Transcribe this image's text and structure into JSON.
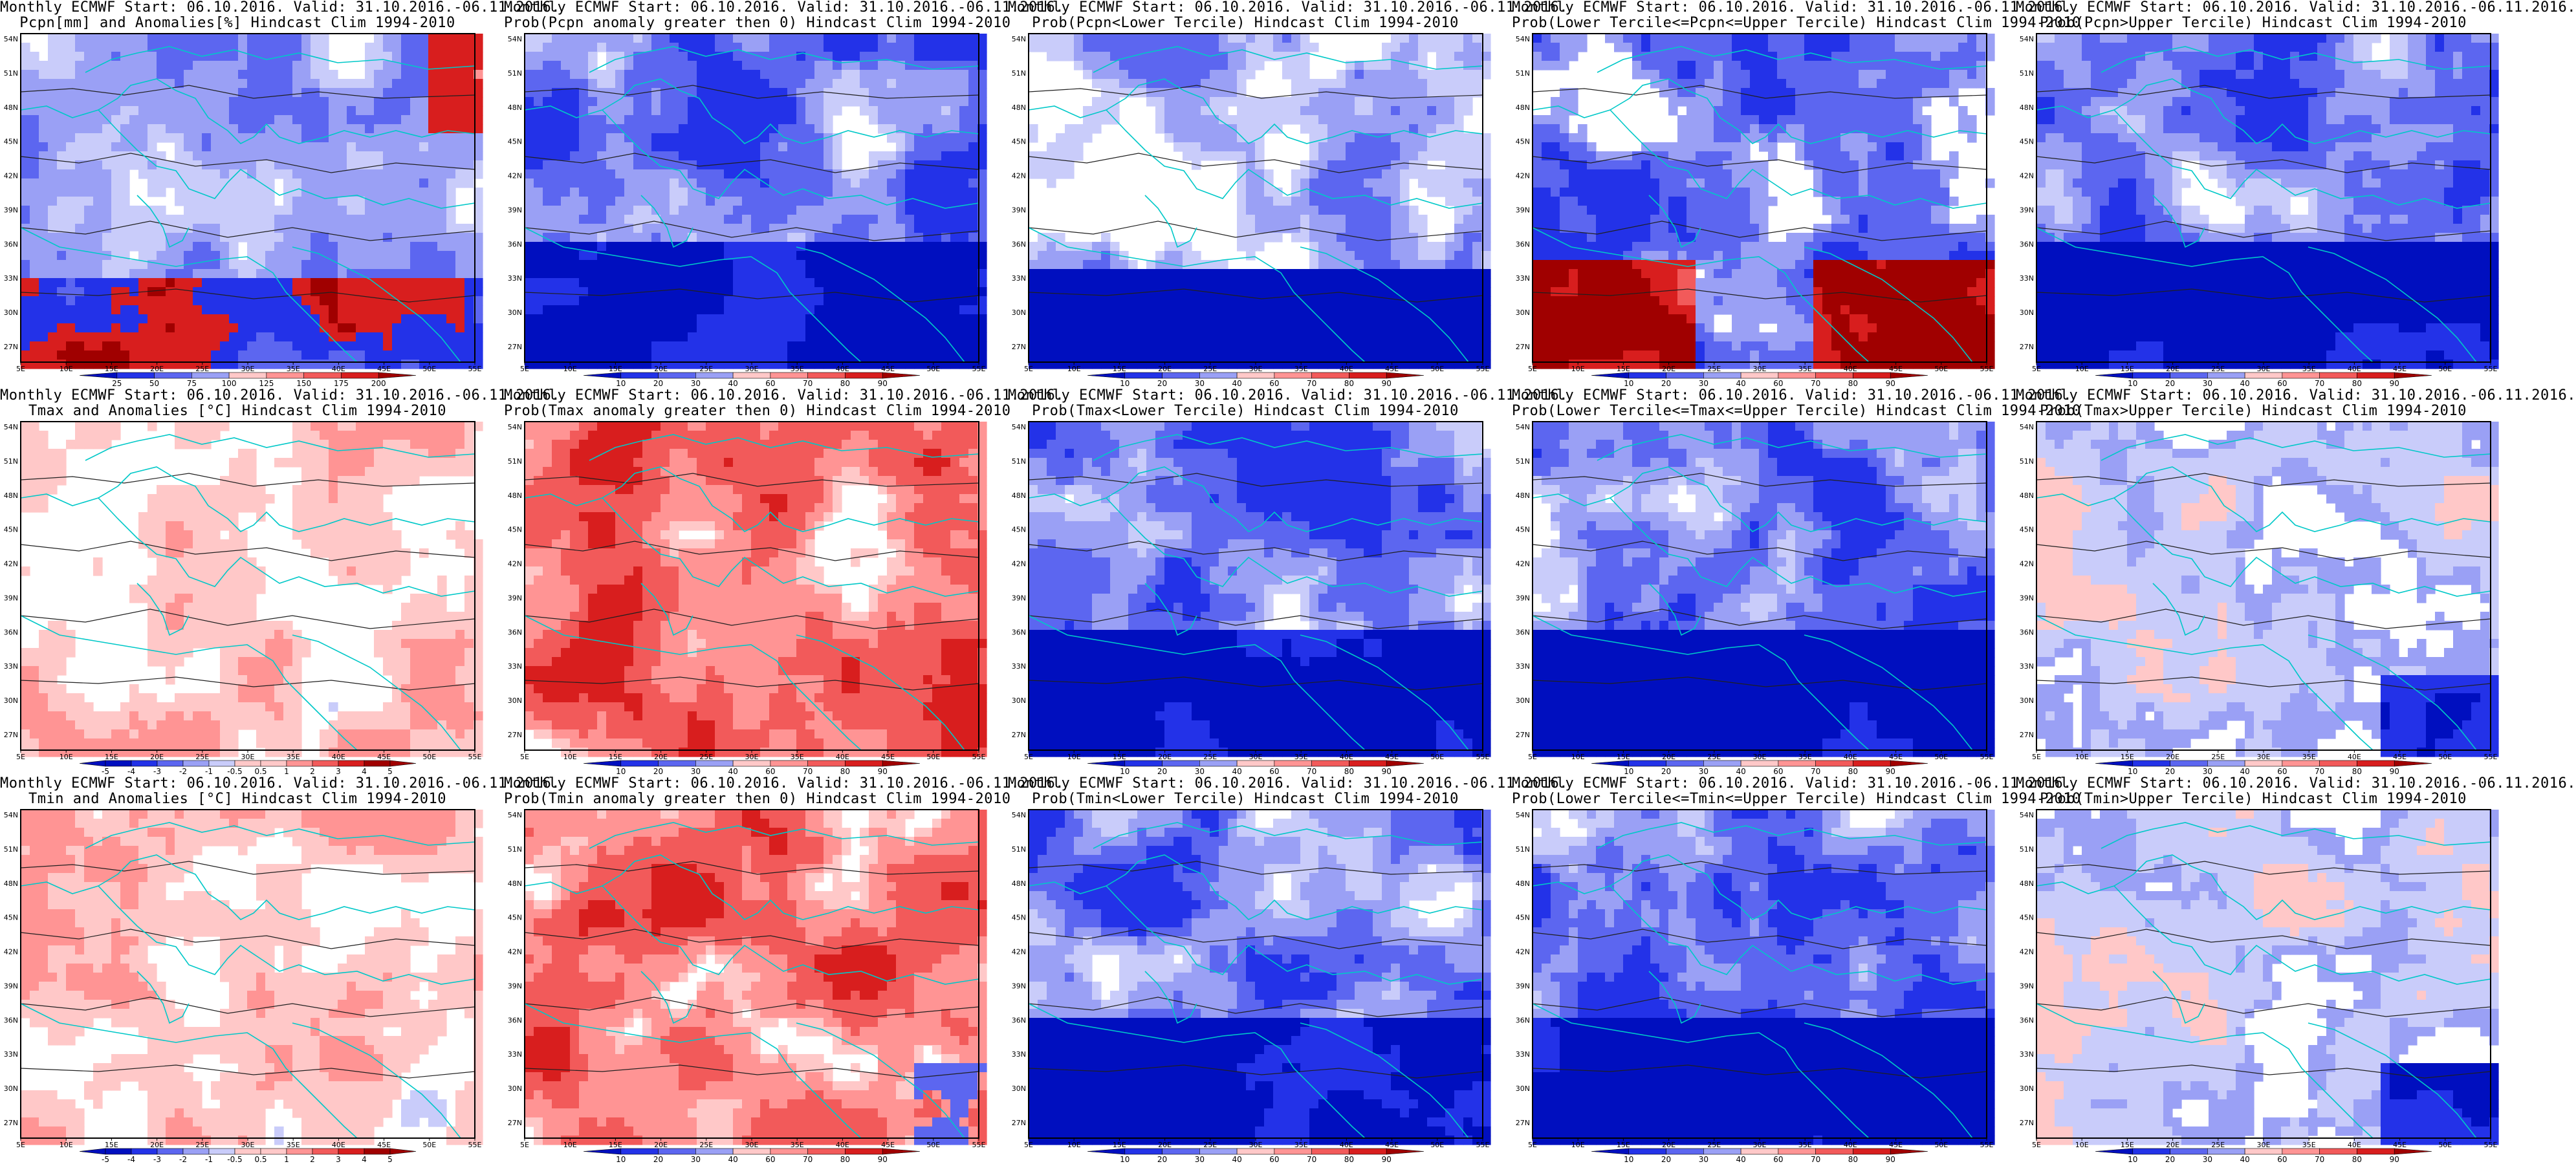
{
  "figure": {
    "panels": [
      {
        "title1": "Monthly ECMWF Start: 06.10.2016. Valid: 31.10.2016.-06.11.2016.",
        "title2": "Pcpn[mm] and Anomalies[%] Hindcast Clim 1994-2010",
        "scheme": "pcpn_anom",
        "colorbar": [
          "25",
          "50",
          "75",
          "100",
          "125",
          "150",
          "175",
          "200"
        ]
      },
      {
        "title1": "Monthly ECMWF Start: 06.10.2016. Valid: 31.10.2016.-06.11.2016.",
        "title2": "Prob(Pcpn anomaly greater then 0) Hindcast Clim 1994-2010",
        "scheme": "prob_blue",
        "colorbar": [
          "10",
          "20",
          "30",
          "40",
          "60",
          "70",
          "80",
          "90"
        ]
      },
      {
        "title1": "Monthly ECMWF Start: 06.10.2016. Valid: 31.10.2016.-06.11.2016.",
        "title2": "Prob(Pcpn<Lower Tercile) Hindcast Clim 1994-2010",
        "scheme": "prob_south_blue",
        "colorbar": [
          "10",
          "20",
          "30",
          "40",
          "60",
          "70",
          "80",
          "90"
        ]
      },
      {
        "title1": "Monthly ECMWF Start: 06.10.2016. Valid: 31.10.2016.-06.11.2016.",
        "title2": "Prob(Lower Tercile<=Pcpn<=Upper Tercile) Hindcast Clim 1994-2010",
        "scheme": "prob_south_red",
        "colorbar": [
          "10",
          "20",
          "30",
          "40",
          "60",
          "70",
          "80",
          "90"
        ]
      },
      {
        "title1": "Monthly ECMWF Start: 06.10.2016. Valid: 31.10.2016.-06.11.2016.",
        "title2": "Prob(Pcpn>Upper Tercile) Hindcast Clim 1994-2010",
        "scheme": "prob_blue",
        "colorbar": [
          "10",
          "20",
          "30",
          "40",
          "60",
          "70",
          "80",
          "90"
        ]
      },
      {
        "title1": "Monthly ECMWF Start: 06.10.2016. Valid: 31.10.2016.-06.11.2016.",
        "title2": "Tmax and Anomalies [°C] Hindcast Clim 1994-2010",
        "scheme": "temp_light_red",
        "colorbar": [
          "-5",
          "-4",
          "-3",
          "-2",
          "-1",
          "-0.5",
          "0.5",
          "1",
          "2",
          "3",
          "4",
          "5"
        ]
      },
      {
        "title1": "Monthly ECMWF Start: 06.10.2016. Valid: 31.10.2016.-06.11.2016.",
        "title2": "Prob(Tmax anomaly greater then 0) Hindcast Clim 1994-2010",
        "scheme": "prob_red",
        "colorbar": [
          "10",
          "20",
          "30",
          "40",
          "60",
          "70",
          "80",
          "90"
        ]
      },
      {
        "title1": "Monthly ECMWF Start: 06.10.2016. Valid: 31.10.2016.-06.11.2016.",
        "title2": "Prob(Tmax<Lower Tercile) Hindcast Clim 1994-2010",
        "scheme": "prob_blue",
        "colorbar": [
          "10",
          "20",
          "30",
          "40",
          "60",
          "70",
          "80",
          "90"
        ]
      },
      {
        "title1": "Monthly ECMWF Start: 06.10.2016. Valid: 31.10.2016.-06.11.2016.",
        "title2": "Prob(Lower Tercile<=Tmax<=Upper Tercile) Hindcast Clim 1994-2010",
        "scheme": "prob_blue",
        "colorbar": [
          "10",
          "20",
          "30",
          "40",
          "60",
          "70",
          "80",
          "90"
        ]
      },
      {
        "title1": "Monthly ECMWF Start: 06.10.2016. Valid: 31.10.2016.-06.11.2016.",
        "title2": "Prob(Tmax>Upper Tercile) Hindcast Clim 1994-2010",
        "scheme": "prob_mixed",
        "colorbar": [
          "10",
          "20",
          "30",
          "40",
          "60",
          "70",
          "80",
          "90"
        ]
      },
      {
        "title1": "Monthly ECMWF Start: 06.10.2016. Valid: 31.10.2016.-06.11.2016.",
        "title2": "Tmin and Anomalies [°C] Hindcast Clim 1994-2010",
        "scheme": "temp_light_red",
        "colorbar": [
          "-5",
          "-4",
          "-3",
          "-2",
          "-1",
          "-0.5",
          "0.5",
          "1",
          "2",
          "3",
          "4",
          "5"
        ]
      },
      {
        "title1": "Monthly ECMWF Start: 06.10.2016. Valid: 31.10.2016.-06.11.2016.",
        "title2": "Prob(Tmin anomaly greater then 0) Hindcast Clim 1994-2010",
        "scheme": "prob_red",
        "colorbar": [
          "10",
          "20",
          "30",
          "40",
          "60",
          "70",
          "80",
          "90"
        ]
      },
      {
        "title1": "Monthly ECMWF Start: 06.10.2016. Valid: 31.10.2016.-06.11.2016.",
        "title2": "Prob(Tmin<Lower Tercile) Hindcast Clim 1994-2010",
        "scheme": "prob_blue",
        "colorbar": [
          "10",
          "20",
          "30",
          "40",
          "60",
          "70",
          "80",
          "90"
        ]
      },
      {
        "title1": "Monthly ECMWF Start: 06.10.2016. Valid: 31.10.2016.-06.11.2016.",
        "title2": "Prob(Lower Tercile<=Tmin<=Upper Tercile) Hindcast Clim 1994-2010",
        "scheme": "prob_blue",
        "colorbar": [
          "10",
          "20",
          "30",
          "40",
          "60",
          "70",
          "80",
          "90"
        ]
      },
      {
        "title1": "Monthly ECMWF Start: 06.10.2016. Valid: 31.10.2016.-06.11.2016.",
        "title2": "Prob(Tmin>Upper Tercile) Hindcast Clim 1994-2010",
        "scheme": "prob_mixed",
        "colorbar": [
          "10",
          "20",
          "30",
          "40",
          "60",
          "70",
          "80",
          "90"
        ]
      }
    ],
    "lon_labels": [
      "5E",
      "10E",
      "15E",
      "20E",
      "25E",
      "30E",
      "35E",
      "40E",
      "45E",
      "50E",
      "55E"
    ],
    "lat_labels": [
      "27N",
      "30N",
      "33N",
      "36N",
      "39N",
      "42N",
      "45N",
      "48N",
      "51N",
      "54N"
    ],
    "colors": {
      "coast": "#00c8c8",
      "contour": "#202020",
      "blue_shades": [
        "#000fbf",
        "#2332e8",
        "#5c66f0",
        "#9aa0f5",
        "#c9ccfa"
      ],
      "red_shades": [
        "#ffc8c8",
        "#ff9494",
        "#f25a5a",
        "#d81e1e",
        "#a00000"
      ]
    }
  }
}
